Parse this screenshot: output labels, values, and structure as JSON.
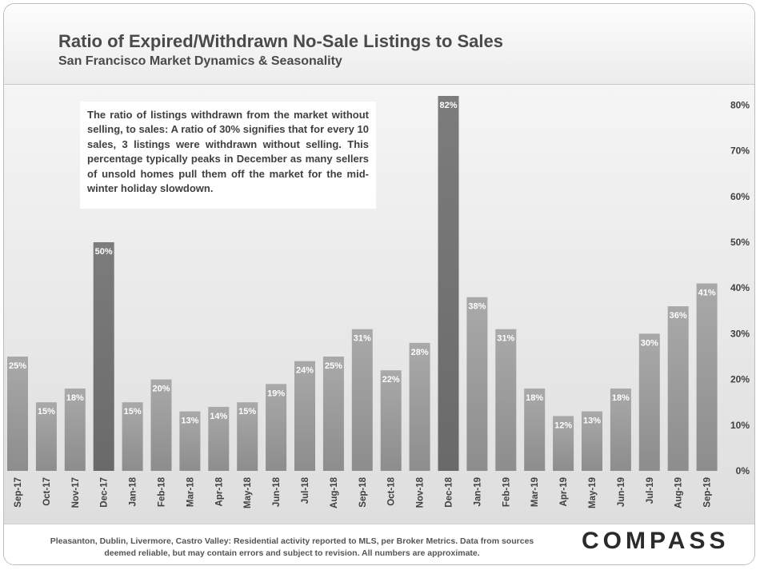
{
  "header": {
    "title": "Ratio of Expired/Withdrawn No-Sale Listings to Sales",
    "subtitle": "San Francisco Market Dynamics & Seasonality"
  },
  "annotation": "The ratio of listings withdrawn from the market without selling, to sales: A ratio of 30% signifies that for every 10 sales, 3 listings were withdrawn without selling. This percentage typically peaks in December as many sellers of unsold homes pull them off the market for the mid-winter holiday slowdown.",
  "footer": {
    "note": "Pleasanton, Dublin, Livermore, Castro Valley: Residential activity reported to MLS, per Broker Metrics. Data from sources deemed reliable, but may contain errors and subject to revision. All numbers are approximate.",
    "logo": "COMPASS"
  },
  "colors": {
    "bar": "#a3a3a3",
    "bar_peak": "#7a7a7a",
    "axis_text": "#404040"
  },
  "chart_data": {
    "type": "bar",
    "categories": [
      "Sep-17",
      "Oct-17",
      "Nov-17",
      "Dec-17",
      "Jan-18",
      "Feb-18",
      "Mar-18",
      "Apr-18",
      "May-18",
      "Jun-18",
      "Jul-18",
      "Aug-18",
      "Sep-18",
      "Oct-18",
      "Nov-18",
      "Dec-18",
      "Jan-19",
      "Feb-19",
      "Mar-19",
      "Apr-19",
      "May-19",
      "Jun-19",
      "Jul-19",
      "Aug-19",
      "Sep-19"
    ],
    "values": [
      25,
      15,
      18,
      50,
      15,
      20,
      13,
      14,
      15,
      19,
      24,
      25,
      31,
      22,
      28,
      82,
      38,
      31,
      18,
      12,
      13,
      18,
      30,
      36,
      41
    ],
    "data_labels": [
      "25%",
      "15%",
      "18%",
      "50%",
      "15%",
      "20%",
      "13%",
      "14%",
      "15%",
      "19%",
      "24%",
      "25%",
      "31%",
      "22%",
      "28%",
      "82%",
      "38%",
      "31%",
      "18%",
      "12%",
      "13%",
      "18%",
      "30%",
      "36%",
      "41%"
    ],
    "highlight": [
      "Dec-17",
      "Dec-18"
    ],
    "y_ticks": [
      0,
      10,
      20,
      30,
      40,
      50,
      60,
      70,
      80
    ],
    "y_tick_labels": [
      "0%",
      "10%",
      "20%",
      "30%",
      "40%",
      "50%",
      "60%",
      "70%",
      "80%"
    ],
    "ylim": [
      0,
      82
    ],
    "y_axis_side": "right",
    "grid": false,
    "legend": "none"
  }
}
